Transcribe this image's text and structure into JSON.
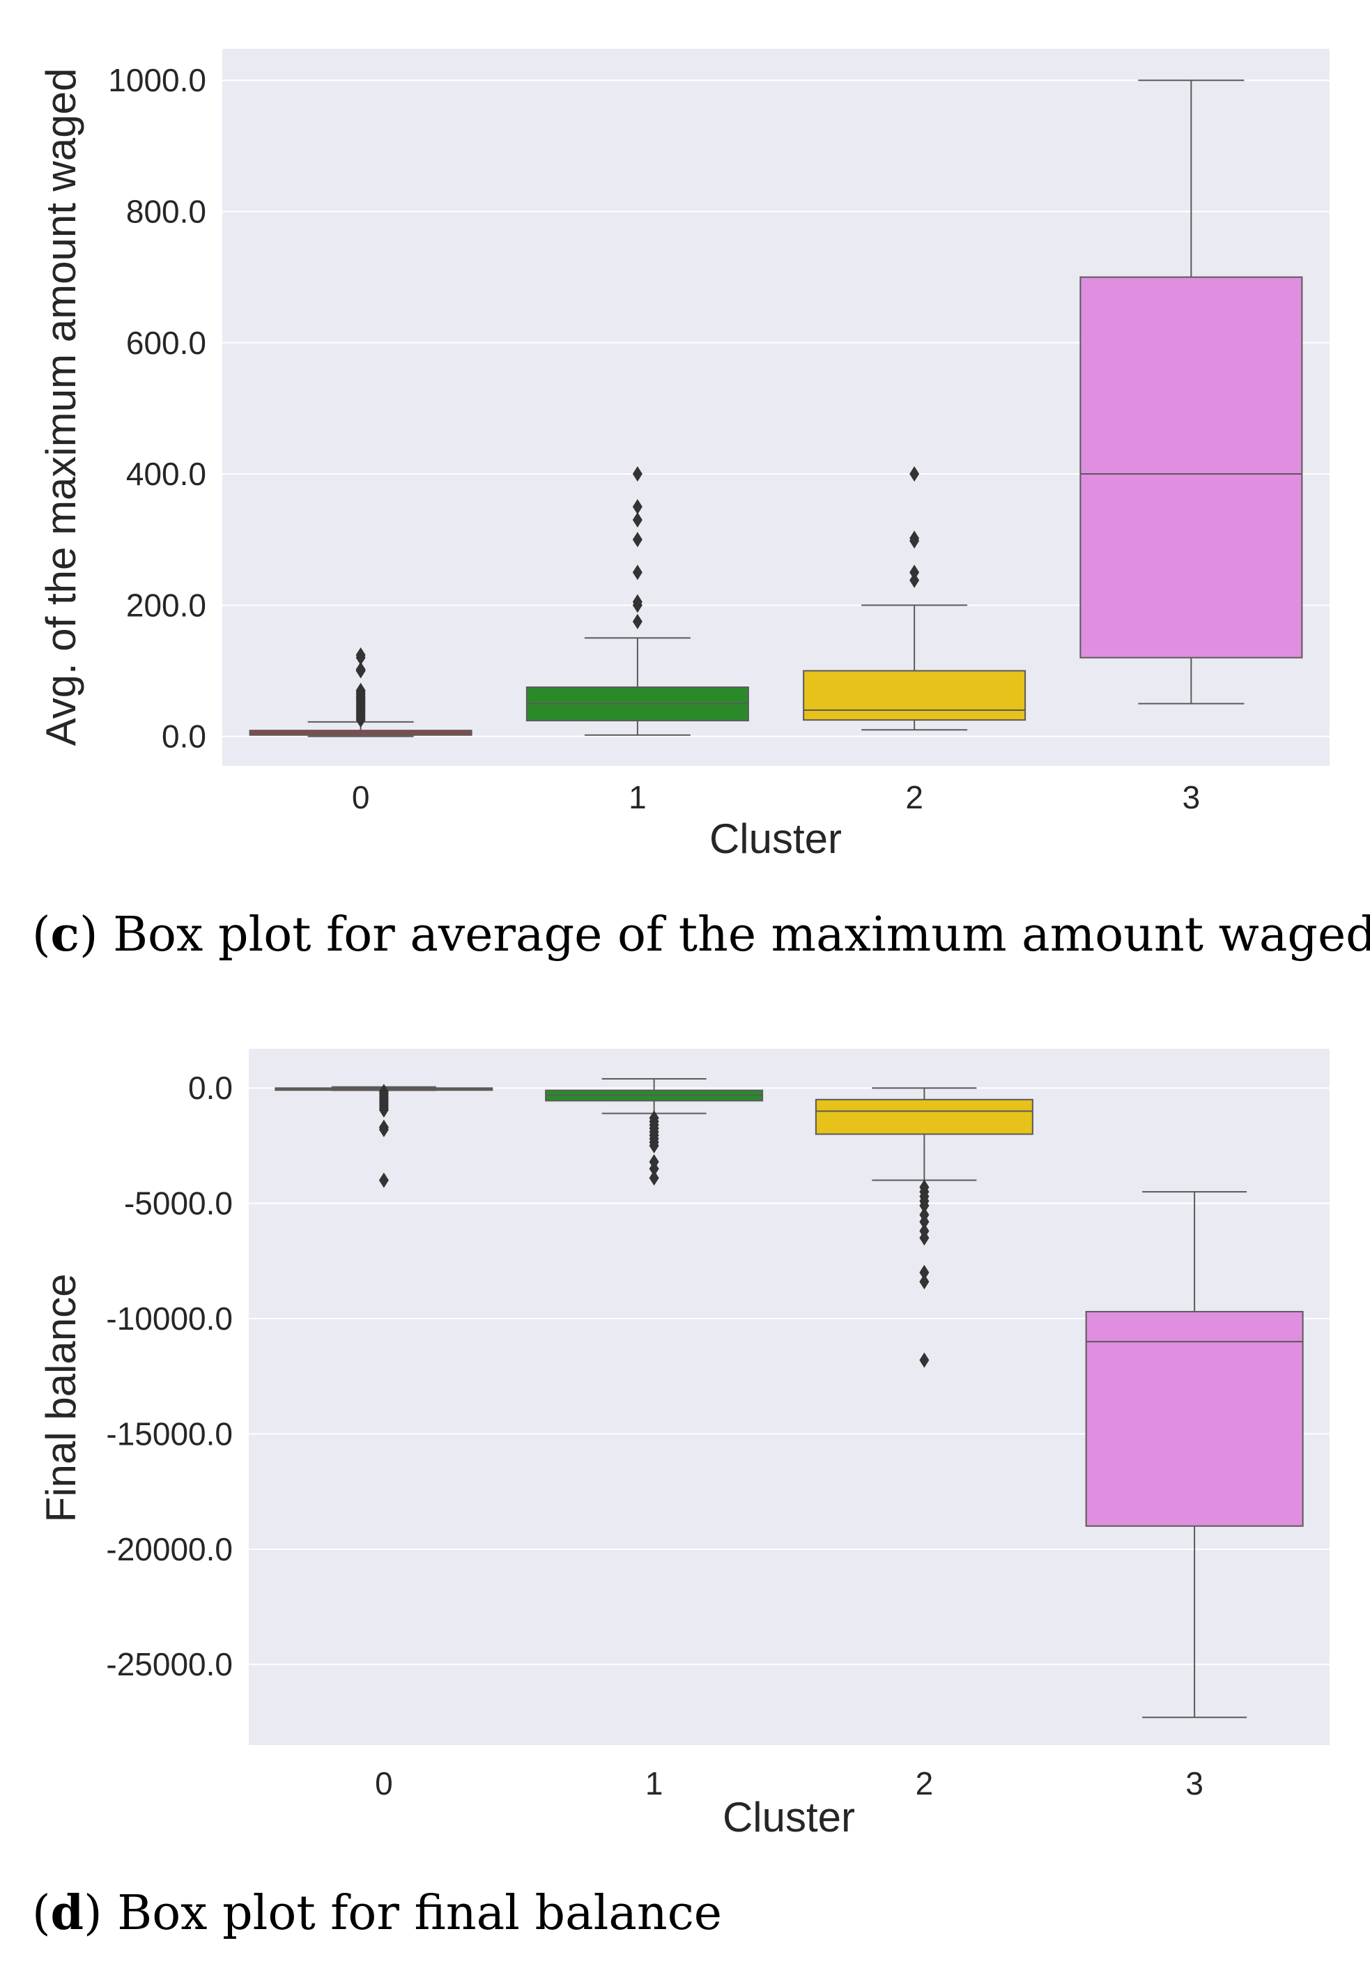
{
  "chart_data": [
    {
      "type": "box",
      "caption": {
        "letter": "c",
        "text": " Box plot for average of the maximum amount waged"
      },
      "xlabel": "Cluster",
      "ylabel": "Avg. of the maximum amount waged",
      "categories": [
        "0",
        "1",
        "2",
        "3"
      ],
      "ylim": [
        -45,
        1048
      ],
      "yticks": [
        0,
        200,
        400,
        600,
        800,
        1000
      ],
      "ytick_labels": [
        "0.0",
        "200.0",
        "400.0",
        "600.0",
        "800.0",
        "1000.0"
      ],
      "boxes": [
        {
          "cluster": "0",
          "color": "#b03a3a",
          "q1": 2,
          "median": 6,
          "q3": 9,
          "whisker_low": 0,
          "whisker_high": 22,
          "outliers": [
            25,
            28,
            31,
            34,
            37,
            40,
            43,
            46,
            49,
            52,
            55,
            58,
            61,
            64,
            67,
            70,
            100,
            102,
            120,
            124
          ]
        },
        {
          "cluster": "1",
          "color": "#2a8a2a",
          "q1": 24,
          "median": 50,
          "q3": 75,
          "whisker_low": 2,
          "whisker_high": 150,
          "outliers": [
            175,
            200,
            205,
            250,
            300,
            330,
            350,
            400
          ]
        },
        {
          "cluster": "2",
          "color": "#e6c21a",
          "q1": 25,
          "median": 40,
          "q3": 100,
          "whisker_low": 10,
          "whisker_high": 200,
          "outliers": [
            238,
            250,
            298,
            302,
            400
          ]
        },
        {
          "cluster": "3",
          "color": "#e08ee0",
          "q1": 120,
          "median": 400,
          "q3": 700,
          "whisker_low": 50,
          "whisker_high": 1000,
          "outliers": []
        }
      ]
    },
    {
      "type": "box",
      "caption": {
        "letter": "d",
        "text": " Box plot for final balance"
      },
      "xlabel": "Cluster",
      "ylabel": "Final balance",
      "categories": [
        "0",
        "1",
        "2",
        "3"
      ],
      "ylim": [
        -28500,
        1700
      ],
      "yticks": [
        0,
        -5000,
        -10000,
        -15000,
        -20000,
        -25000
      ],
      "ytick_labels": [
        "0.0",
        "-5000.0",
        "-10000.0",
        "-15000.0",
        "-20000.0",
        "-25000.0"
      ],
      "boxes": [
        {
          "cluster": "0",
          "color": "#b03a3a",
          "q1": -80,
          "median": -30,
          "q3": 0,
          "whisker_low": -100,
          "whisker_high": 50,
          "outliers": [
            -150,
            -250,
            -350,
            -450,
            -550,
            -650,
            -750,
            -850,
            -950,
            -1700,
            -1800,
            -4000
          ]
        },
        {
          "cluster": "1",
          "color": "#2a8a2a",
          "q1": -550,
          "median": -300,
          "q3": -100,
          "whisker_low": -1100,
          "whisker_high": 400,
          "outliers": [
            -1300,
            -1450,
            -1600,
            -1750,
            -1900,
            -2050,
            -2200,
            -2350,
            -2500,
            -3200,
            -3500,
            -3900
          ]
        },
        {
          "cluster": "2",
          "color": "#e6c21a",
          "q1": -2000,
          "median": -1000,
          "q3": -500,
          "whisker_low": -4000,
          "whisker_high": 0,
          "outliers": [
            -4300,
            -4500,
            -4700,
            -4900,
            -5100,
            -5500,
            -5800,
            -6200,
            -6500,
            -8000,
            -8400,
            -11800
          ]
        },
        {
          "cluster": "3",
          "color": "#e08ee0",
          "q1": -19000,
          "median": -11000,
          "q3": -9700,
          "whisker_low": -27300,
          "whisker_high": -4500,
          "outliers": []
        }
      ]
    }
  ]
}
